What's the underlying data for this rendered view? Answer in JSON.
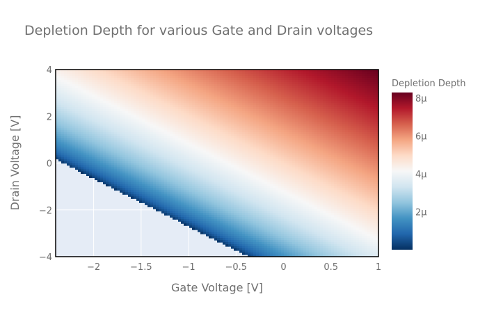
{
  "chart_data": {
    "type": "heatmap",
    "title": "Depletion Depth for various Gate and Drain voltages",
    "xlabel": "Gate Voltage [V]",
    "ylabel": "Drain Voltage [V]",
    "xlim": [
      -2.4,
      1
    ],
    "ylim": [
      -4,
      4
    ],
    "x_ticks": [
      "−2",
      "−1.5",
      "−1",
      "−0.5",
      "0",
      "0.5",
      "1"
    ],
    "x_tick_values": [
      -2,
      -1.5,
      -1,
      -0.5,
      0,
      0.5,
      1
    ],
    "y_ticks": [
      "−4",
      "−2",
      "0",
      "2",
      "4"
    ],
    "y_tick_values": [
      -4,
      -2,
      0,
      2,
      4
    ],
    "z_description": "Depletion depth; undefined (blank) where Drain Voltage < -2.05*Gate Voltage - 4.75; approx 0 at that boundary rising to ~8.3μ at Gate=1, Drain=4",
    "boundary": {
      "slope": -2.05,
      "intercept": -4.75
    },
    "z_range": [
      0,
      8.3
    ],
    "colorbar": {
      "title": "Depletion Depth",
      "tick_labels": [
        "2μ",
        "4μ",
        "6μ",
        "8μ"
      ],
      "tick_values": [
        2,
        4,
        6,
        8
      ],
      "colorscale": [
        "#053061",
        "#2166ac",
        "#4393c3",
        "#92c5de",
        "#d1e5f0",
        "#f7f7f7",
        "#fddbc7",
        "#f4a582",
        "#d6604d",
        "#b2182b",
        "#67001f"
      ]
    },
    "grid": true,
    "plot_background": "#e5ecf6"
  }
}
